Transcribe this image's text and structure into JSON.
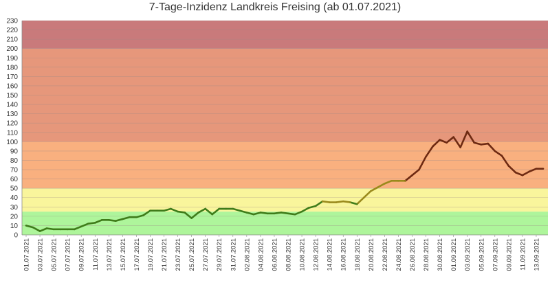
{
  "chart_data": {
    "type": "line",
    "title": "7-Tage-Inzidenz Landkreis Freising (ab 01.07.2021)",
    "xlabel": "",
    "ylabel": "",
    "ylim": [
      0,
      230
    ],
    "yticks": [
      0,
      10,
      20,
      30,
      40,
      50,
      60,
      70,
      80,
      90,
      100,
      110,
      120,
      130,
      140,
      150,
      160,
      170,
      180,
      190,
      200,
      210,
      220,
      230
    ],
    "grid": true,
    "bands": [
      {
        "from": 0,
        "to": 25,
        "color": "#aef59b"
      },
      {
        "from": 25,
        "to": 50,
        "color": "#f9f59c"
      },
      {
        "from": 50,
        "to": 100,
        "color": "#f9b07f"
      },
      {
        "from": 100,
        "to": 200,
        "color": "#e6977b"
      },
      {
        "from": 200,
        "to": 230,
        "color": "#c97a7b"
      }
    ],
    "line_colors": {
      "low": "#3f7c1a",
      "mid": "#9a8a1c",
      "high": "#6e2a12"
    },
    "x_tick_labels": [
      "01.07.2021",
      "03.07.2021",
      "05.07.2021",
      "07.07.2021",
      "09.07.2021",
      "11.07.2021",
      "13.07.2021",
      "15.07.2021",
      "17.07.2021",
      "19.07.2021",
      "21.07.2021",
      "23.07.2021",
      "25.07.2021",
      "27.07.2021",
      "29.07.2021",
      "31.07.2021",
      "02.08.2021",
      "04.08.2021",
      "06.08.2021",
      "08.08.2021",
      "10.08.2021",
      "12.08.2021",
      "14.08.2021",
      "16.08.2021",
      "18.08.2021",
      "20.08.2021",
      "22.08.2021",
      "24.08.2021",
      "26.08.2021",
      "28.08.2021",
      "30.08.2021",
      "01.09.2021",
      "03.09.2021",
      "05.09.2021",
      "07.09.2021",
      "09.09.2021",
      "11.09.2021",
      "13.09.2021"
    ],
    "series": [
      {
        "values": [
          10,
          8,
          4,
          7,
          6,
          6,
          6,
          6,
          9,
          12,
          13,
          16,
          16,
          15,
          17,
          19,
          19,
          21,
          26,
          26,
          26,
          28,
          25,
          24,
          18,
          24,
          28,
          22,
          28,
          28,
          28,
          26,
          24,
          22,
          24,
          23,
          23,
          24,
          23,
          22,
          25,
          29,
          31,
          36,
          35,
          35,
          36,
          35,
          33,
          40,
          47,
          51,
          55,
          58,
          58,
          58,
          64,
          70,
          84,
          95,
          102,
          99,
          105,
          94,
          111,
          99,
          97,
          98,
          90,
          85,
          74,
          67,
          64,
          68,
          71,
          71
        ]
      }
    ]
  }
}
